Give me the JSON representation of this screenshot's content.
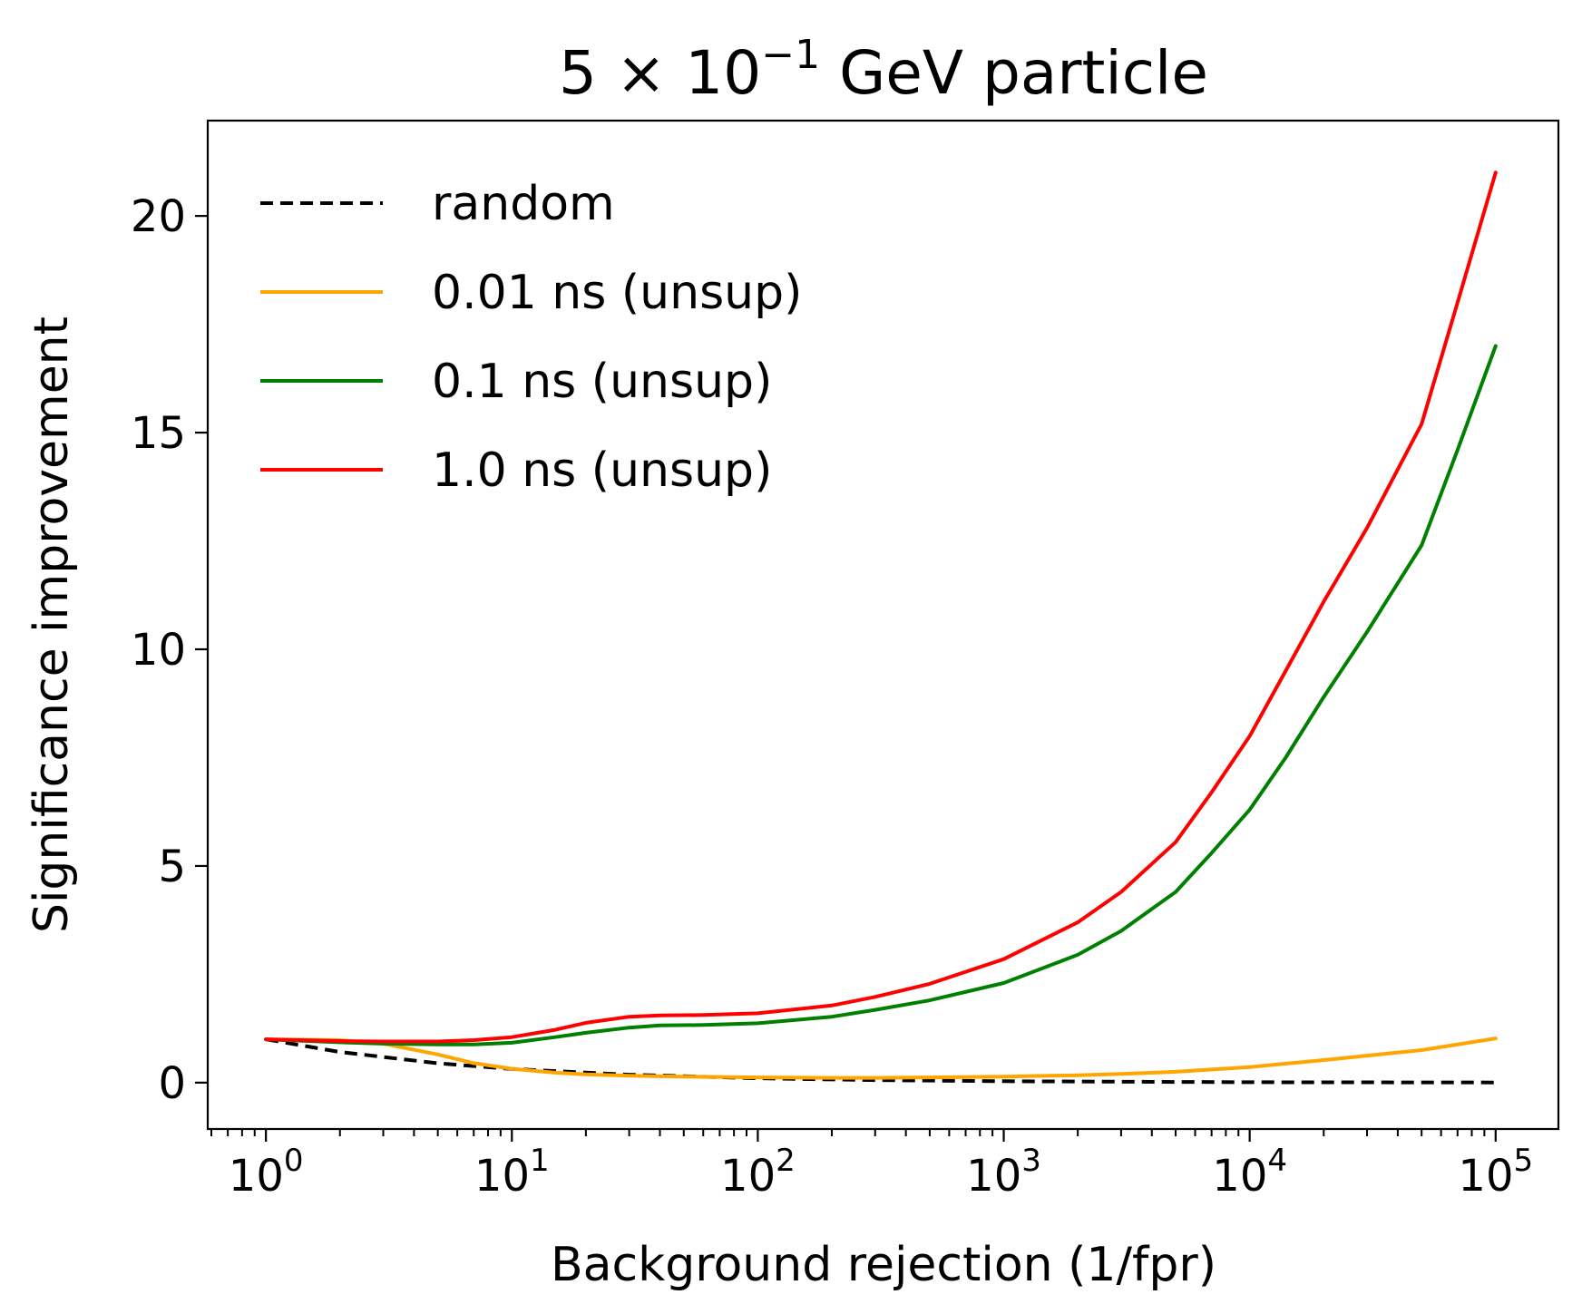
{
  "chart_data": {
    "type": "line",
    "title": "5 × 10⁻¹ GeV particle",
    "title_parts": {
      "mantissa": "5 × 10",
      "exponent": "−1",
      "suffix": " GeV particle"
    },
    "xlabel": "Background rejection (1/fpr)",
    "ylabel": "Significance improvement",
    "xscale": "log",
    "xlim": [
      0.58,
      180000
    ],
    "ylim": [
      -1.07,
      22.2
    ],
    "x_ticks": [
      {
        "value": 1,
        "base": "10",
        "exp": "0"
      },
      {
        "value": 10,
        "base": "10",
        "exp": "1"
      },
      {
        "value": 100,
        "base": "10",
        "exp": "2"
      },
      {
        "value": 1000,
        "base": "10",
        "exp": "3"
      },
      {
        "value": 10000,
        "base": "10",
        "exp": "4"
      },
      {
        "value": 100000,
        "base": "10",
        "exp": "5"
      }
    ],
    "y_ticks": [
      {
        "value": 0,
        "label": "0"
      },
      {
        "value": 5,
        "label": "5"
      },
      {
        "value": 10,
        "label": "10"
      },
      {
        "value": 15,
        "label": "15"
      },
      {
        "value": 20,
        "label": "20"
      }
    ],
    "grid": false,
    "legend_position": "top-left",
    "series": [
      {
        "name": "random",
        "color": "#000000",
        "dashed": true,
        "x": [
          1,
          2,
          5,
          10,
          30,
          100,
          300,
          1000,
          10000,
          100000
        ],
        "y": [
          1.0,
          0.707,
          0.447,
          0.316,
          0.183,
          0.1,
          0.058,
          0.032,
          0.01,
          0.003
        ]
      },
      {
        "name": "0.01 ns (unsup)",
        "color": "#ffa500",
        "dashed": false,
        "x": [
          1,
          2,
          3,
          5,
          7,
          10,
          15,
          20,
          30,
          50,
          100,
          200,
          300,
          500,
          1000,
          2000,
          3000,
          5000,
          10000,
          20000,
          50000,
          100000
        ],
        "y": [
          1.0,
          0.98,
          0.9,
          0.65,
          0.45,
          0.32,
          0.23,
          0.19,
          0.16,
          0.14,
          0.12,
          0.11,
          0.11,
          0.12,
          0.14,
          0.17,
          0.2,
          0.25,
          0.36,
          0.52,
          0.75,
          1.02
        ]
      },
      {
        "name": "0.1 ns (unsup)",
        "color": "#008000",
        "dashed": false,
        "x": [
          1,
          2,
          3,
          5,
          7,
          10,
          15,
          20,
          30,
          40,
          60,
          100,
          200,
          300,
          500,
          1000,
          2000,
          3000,
          5000,
          7000,
          10000,
          14000,
          20000,
          30000,
          50000,
          70000,
          100000
        ],
        "y": [
          1.0,
          0.93,
          0.9,
          0.88,
          0.88,
          0.92,
          1.05,
          1.15,
          1.27,
          1.32,
          1.33,
          1.37,
          1.52,
          1.68,
          1.9,
          2.3,
          2.95,
          3.5,
          4.4,
          5.3,
          6.3,
          7.5,
          8.9,
          10.4,
          12.4,
          14.6,
          17.0
        ]
      },
      {
        "name": "1.0 ns (unsup)",
        "color": "#ff0000",
        "dashed": false,
        "x": [
          1,
          2,
          3,
          5,
          7,
          10,
          15,
          20,
          30,
          40,
          60,
          100,
          200,
          300,
          500,
          1000,
          2000,
          3000,
          5000,
          7000,
          10000,
          14000,
          20000,
          30000,
          50000,
          70000,
          100000
        ],
        "y": [
          1.0,
          0.96,
          0.95,
          0.95,
          0.98,
          1.05,
          1.22,
          1.38,
          1.52,
          1.55,
          1.56,
          1.6,
          1.78,
          1.98,
          2.28,
          2.85,
          3.7,
          4.4,
          5.55,
          6.7,
          8.0,
          9.5,
          11.1,
          12.8,
          15.2,
          18.0,
          21.0
        ]
      }
    ]
  }
}
